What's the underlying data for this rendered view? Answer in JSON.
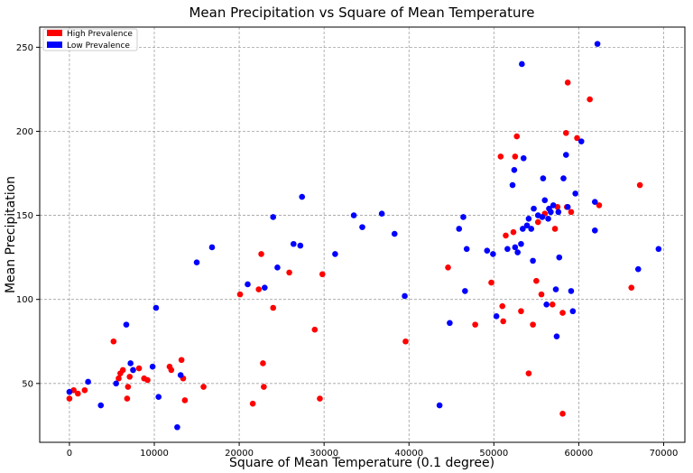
{
  "chart_data": {
    "type": "scatter",
    "title": "Mean Precipitation vs Square of Mean Temperature",
    "xlabel": "Square of Mean Temperature (0.1 degree)",
    "ylabel": "Mean Precipitation",
    "xlim": [
      -3500,
      72500
    ],
    "ylim": [
      15,
      262
    ],
    "xticks": [
      0,
      10000,
      20000,
      30000,
      40000,
      50000,
      60000,
      70000
    ],
    "yticks": [
      50,
      100,
      150,
      200,
      250
    ],
    "grid": true,
    "legend_position": "top-left",
    "series": [
      {
        "name": "High Prevalence",
        "color": "#ff0000",
        "points": [
          [
            0,
            41
          ],
          [
            500,
            46
          ],
          [
            1000,
            44
          ],
          [
            1800,
            46
          ],
          [
            5200,
            75
          ],
          [
            5800,
            53
          ],
          [
            6000,
            56
          ],
          [
            6300,
            58
          ],
          [
            6800,
            41
          ],
          [
            6900,
            48
          ],
          [
            7100,
            54
          ],
          [
            7500,
            58
          ],
          [
            8200,
            59
          ],
          [
            8800,
            53
          ],
          [
            9200,
            52
          ],
          [
            11800,
            60
          ],
          [
            12000,
            58
          ],
          [
            13200,
            64
          ],
          [
            13400,
            53
          ],
          [
            13600,
            40
          ],
          [
            15800,
            48
          ],
          [
            20100,
            103
          ],
          [
            21600,
            38
          ],
          [
            22300,
            106
          ],
          [
            22600,
            127
          ],
          [
            22800,
            62
          ],
          [
            22900,
            48
          ],
          [
            24000,
            95
          ],
          [
            25900,
            116
          ],
          [
            28900,
            82
          ],
          [
            29500,
            41
          ],
          [
            29800,
            115
          ],
          [
            39600,
            75
          ],
          [
            44600,
            119
          ],
          [
            47800,
            85
          ],
          [
            49700,
            110
          ],
          [
            50800,
            185
          ],
          [
            51000,
            96
          ],
          [
            51100,
            87
          ],
          [
            51400,
            138
          ],
          [
            52300,
            140
          ],
          [
            52500,
            185
          ],
          [
            52700,
            197
          ],
          [
            53200,
            93
          ],
          [
            54100,
            56
          ],
          [
            54600,
            85
          ],
          [
            55000,
            111
          ],
          [
            55200,
            146
          ],
          [
            55600,
            103
          ],
          [
            56000,
            151
          ],
          [
            56900,
            97
          ],
          [
            57200,
            142
          ],
          [
            57500,
            155
          ],
          [
            58100,
            92
          ],
          [
            58100,
            32
          ],
          [
            58500,
            199
          ],
          [
            58600,
            155
          ],
          [
            58700,
            229
          ],
          [
            59100,
            152
          ],
          [
            59800,
            196
          ],
          [
            61300,
            219
          ],
          [
            62400,
            156
          ],
          [
            66200,
            107
          ],
          [
            67200,
            168
          ]
        ]
      },
      {
        "name": "Low Prevalence",
        "color": "#0000ff",
        "points": [
          [
            0,
            45
          ],
          [
            2200,
            51
          ],
          [
            3700,
            37
          ],
          [
            5500,
            50
          ],
          [
            6700,
            85
          ],
          [
            7200,
            62
          ],
          [
            7500,
            58
          ],
          [
            9800,
            60
          ],
          [
            10200,
            95
          ],
          [
            10500,
            42
          ],
          [
            12700,
            24
          ],
          [
            13100,
            55
          ],
          [
            15000,
            122
          ],
          [
            16800,
            131
          ],
          [
            21000,
            109
          ],
          [
            23000,
            107
          ],
          [
            24000,
            149
          ],
          [
            24500,
            119
          ],
          [
            26400,
            133
          ],
          [
            27200,
            132
          ],
          [
            27400,
            161
          ],
          [
            31300,
            127
          ],
          [
            33500,
            150
          ],
          [
            34500,
            143
          ],
          [
            36800,
            151
          ],
          [
            38300,
            139
          ],
          [
            39500,
            102
          ],
          [
            43600,
            37
          ],
          [
            44800,
            86
          ],
          [
            45900,
            142
          ],
          [
            46400,
            149
          ],
          [
            46600,
            105
          ],
          [
            46800,
            130
          ],
          [
            49200,
            129
          ],
          [
            49900,
            127
          ],
          [
            50300,
            90
          ],
          [
            51600,
            130
          ],
          [
            52200,
            168
          ],
          [
            52400,
            177
          ],
          [
            52500,
            131
          ],
          [
            52800,
            128
          ],
          [
            53200,
            133
          ],
          [
            53300,
            240
          ],
          [
            53400,
            142
          ],
          [
            53500,
            184
          ],
          [
            53900,
            144
          ],
          [
            54100,
            148
          ],
          [
            54400,
            142
          ],
          [
            54600,
            123
          ],
          [
            54700,
            154
          ],
          [
            55200,
            150
          ],
          [
            55700,
            149
          ],
          [
            55800,
            172
          ],
          [
            56000,
            159
          ],
          [
            56200,
            97
          ],
          [
            56400,
            148
          ],
          [
            56500,
            154
          ],
          [
            56700,
            152
          ],
          [
            57000,
            156
          ],
          [
            57300,
            106
          ],
          [
            57400,
            78
          ],
          [
            57600,
            152
          ],
          [
            57700,
            125
          ],
          [
            58200,
            172
          ],
          [
            58500,
            186
          ],
          [
            58700,
            155
          ],
          [
            59100,
            105
          ],
          [
            59300,
            93
          ],
          [
            59600,
            163
          ],
          [
            60300,
            194
          ],
          [
            61900,
            158
          ],
          [
            61900,
            141
          ],
          [
            62200,
            252
          ],
          [
            67000,
            118
          ],
          [
            69400,
            130
          ]
        ]
      }
    ]
  }
}
